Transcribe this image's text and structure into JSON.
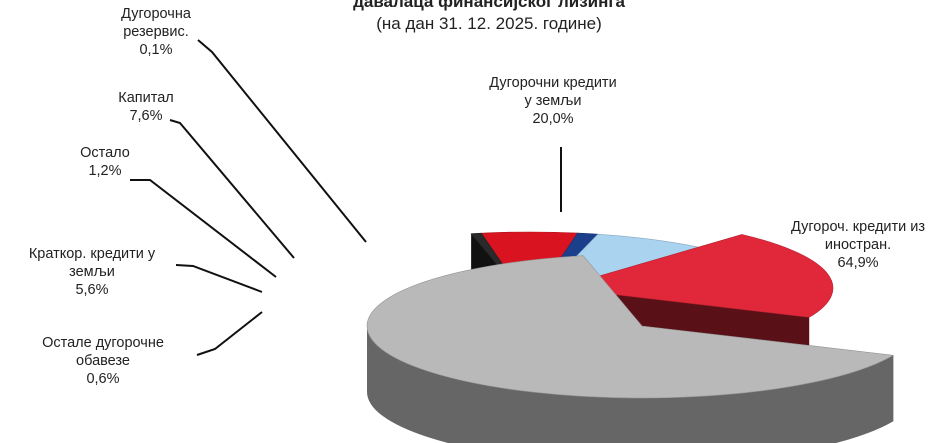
{
  "chart_data": {
    "type": "pie",
    "style": "3d-exploded",
    "title": "давалаца финансијског лизинга",
    "subtitle": "(на дан 31. 12. 2025. године)",
    "slices": [
      {
        "name": "Дугороч. кредити из иностран.",
        "label_lines": [
          "Дугороч. кредити из",
          "иностран."
        ],
        "value_label": "64,9%",
        "value": 64.9,
        "color": "#b9b9b9"
      },
      {
        "name": "Остале дугорочне обавезе",
        "label_lines": [
          "Остале дугорочне",
          "обавезе"
        ],
        "value_label": "0,6%",
        "value": 0.6,
        "color": "#2a2a2a"
      },
      {
        "name": "Краткор. кредити у земљи",
        "label_lines": [
          "Краткор. кредити у",
          "земљи"
        ],
        "value_label": "5,6%",
        "value": 5.6,
        "color": "#d91420"
      },
      {
        "name": "Остало",
        "label_lines": [
          "Остало"
        ],
        "value_label": "1,2%",
        "value": 1.2,
        "color": "#1c3f8c"
      },
      {
        "name": "Капитал",
        "label_lines": [
          "Капитал"
        ],
        "value_label": "7,6%",
        "value": 7.6,
        "color": "#a9d3ef"
      },
      {
        "name": "Дугорочна резервис.",
        "label_lines": [
          "Дугорочна",
          "резервис."
        ],
        "value_label": "0,1%",
        "value": 0.1,
        "color": "#1a1a1a"
      },
      {
        "name": "Дугорочни кредити у земљи",
        "label_lines": [
          "Дугорочни кредити",
          "у земљи"
        ],
        "value_label": "20,0%",
        "value": 20.0,
        "color": "#e0283a"
      }
    ],
    "legend": "none"
  }
}
